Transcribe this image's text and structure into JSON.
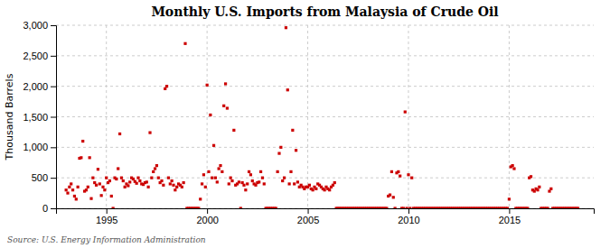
{
  "chart_data": {
    "type": "scatter",
    "title": "Monthly U.S. Imports from Malaysia of Crude Oil",
    "ylabel": "Thousand Barrels",
    "annotations": [
      "Source: U.S. Energy Information Administration"
    ],
    "color": "#CC0000",
    "marker": "square",
    "grid": true,
    "ylim": [
      0,
      3000
    ],
    "yticks": [
      0,
      500,
      {
        "value": 1000,
        "label": "1,000"
      },
      {
        "value": 1500,
        "label": "1,500"
      },
      {
        "value": 2000,
        "label": "2,000"
      },
      {
        "value": 2500,
        "label": "2,500"
      },
      {
        "value": 3000,
        "label": "3,000"
      }
    ],
    "xlim": [
      1992.5,
      2019.2
    ],
    "xticks": [
      1995,
      2000,
      2005,
      2010,
      2015
    ],
    "x": [
      1993.0,
      1993.083,
      1993.167,
      1993.25,
      1993.333,
      1993.417,
      1993.5,
      1993.583,
      1993.667,
      1993.75,
      1993.833,
      1993.917,
      1994.0,
      1994.083,
      1994.167,
      1994.25,
      1994.333,
      1994.417,
      1994.5,
      1994.583,
      1994.667,
      1994.75,
      1994.833,
      1994.917,
      1995.0,
      1995.083,
      1995.167,
      1995.25,
      1995.333,
      1995.417,
      1995.5,
      1995.583,
      1995.667,
      1995.75,
      1995.833,
      1995.917,
      1996.0,
      1996.083,
      1996.167,
      1996.25,
      1996.333,
      1996.417,
      1996.5,
      1996.583,
      1996.667,
      1996.75,
      1996.833,
      1996.917,
      1997.0,
      1997.083,
      1997.167,
      1997.25,
      1997.333,
      1997.417,
      1997.5,
      1997.583,
      1997.667,
      1997.75,
      1997.833,
      1997.917,
      1998.0,
      1998.083,
      1998.167,
      1998.25,
      1998.333,
      1998.417,
      1998.5,
      1998.583,
      1998.667,
      1998.75,
      1998.833,
      1998.917,
      1999.0,
      1999.083,
      1999.167,
      1999.25,
      1999.333,
      1999.417,
      1999.5,
      1999.583,
      1999.667,
      1999.75,
      1999.833,
      1999.917,
      2000.0,
      2000.083,
      2000.167,
      2000.25,
      2000.333,
      2000.417,
      2000.5,
      2000.583,
      2000.667,
      2000.75,
      2000.833,
      2000.917,
      2001.0,
      2001.083,
      2001.167,
      2001.25,
      2001.333,
      2001.417,
      2001.5,
      2001.583,
      2001.667,
      2001.75,
      2001.833,
      2001.917,
      2002.0,
      2002.083,
      2002.167,
      2002.25,
      2002.333,
      2002.417,
      2002.5,
      2002.583,
      2002.667,
      2002.75,
      2002.833,
      2002.917,
      2003.0,
      2003.083,
      2003.167,
      2003.25,
      2003.333,
      2003.417,
      2003.5,
      2003.583,
      2003.667,
      2003.75,
      2003.833,
      2003.917,
      2004.0,
      2004.083,
      2004.167,
      2004.25,
      2004.333,
      2004.417,
      2004.5,
      2004.583,
      2004.667,
      2004.75,
      2004.833,
      2004.917,
      2005.0,
      2005.083,
      2005.167,
      2005.25,
      2005.333,
      2005.417,
      2005.5,
      2005.583,
      2005.667,
      2005.75,
      2005.833,
      2005.917,
      2006.0,
      2006.083,
      2006.167,
      2006.25,
      2006.333,
      2006.417,
      2006.5,
      2006.583,
      2006.667,
      2006.75,
      2006.833,
      2006.917,
      2007.0,
      2007.083,
      2007.167,
      2007.25,
      2007.333,
      2007.417,
      2007.5,
      2007.583,
      2007.667,
      2007.75,
      2007.833,
      2007.917,
      2008.0,
      2008.083,
      2008.167,
      2008.25,
      2008.333,
      2008.417,
      2008.5,
      2008.583,
      2008.667,
      2008.75,
      2008.833,
      2008.917,
      2009.0,
      2009.083,
      2009.167,
      2009.25,
      2009.333,
      2009.417,
      2009.5,
      2009.583,
      2009.667,
      2009.75,
      2009.833,
      2009.917,
      2010.0,
      2010.083,
      2010.167,
      2010.25,
      2010.333,
      2010.417,
      2010.5,
      2010.583,
      2010.667,
      2010.75,
      2010.833,
      2010.917,
      2011.0,
      2011.083,
      2011.167,
      2011.25,
      2011.333,
      2011.417,
      2011.5,
      2011.583,
      2011.667,
      2011.75,
      2011.833,
      2011.917,
      2012.0,
      2012.083,
      2012.167,
      2012.25,
      2012.333,
      2012.417,
      2012.5,
      2012.583,
      2012.667,
      2012.75,
      2012.833,
      2012.917,
      2013.0,
      2013.083,
      2013.167,
      2013.25,
      2013.333,
      2013.417,
      2013.5,
      2013.583,
      2013.667,
      2013.75,
      2013.833,
      2013.917,
      2014.0,
      2014.083,
      2014.167,
      2014.25,
      2014.333,
      2014.417,
      2014.5,
      2014.583,
      2014.667,
      2014.75,
      2014.833,
      2014.917,
      2015.0,
      2015.083,
      2015.167,
      2015.25,
      2015.333,
      2015.417,
      2015.5,
      2015.583,
      2015.667,
      2015.75,
      2015.833,
      2015.917,
      2016.0,
      2016.083,
      2016.167,
      2016.25,
      2016.333,
      2016.417,
      2016.5,
      2016.583,
      2016.667,
      2016.75,
      2016.833,
      2016.917,
      2017.0,
      2017.083,
      2017.167,
      2017.25,
      2017.333,
      2017.417,
      2017.5,
      2017.583,
      2017.667,
      2017.75,
      2017.833,
      2017.917,
      2018.0,
      2018.083,
      2018.167,
      2018.25,
      2018.333,
      2018.417
    ],
    "values": [
      300,
      250,
      350,
      400,
      300,
      200,
      150,
      350,
      820,
      830,
      1100,
      280,
      300,
      350,
      830,
      160,
      500,
      420,
      380,
      640,
      400,
      210,
      350,
      300,
      500,
      420,
      450,
      200,
      0,
      500,
      480,
      650,
      1220,
      500,
      450,
      350,
      400,
      370,
      430,
      500,
      480,
      440,
      410,
      500,
      450,
      400,
      390,
      420,
      430,
      350,
      1240,
      500,
      600,
      650,
      700,
      500,
      420,
      450,
      380,
      1960,
      2000,
      500,
      400,
      450,
      380,
      300,
      350,
      400,
      380,
      350,
      420,
      2700,
      0,
      0,
      0,
      0,
      0,
      0,
      0,
      0,
      150,
      400,
      550,
      350,
      2020,
      600,
      1530,
      500,
      1030,
      500,
      430,
      650,
      700,
      600,
      1680,
      2040,
      1640,
      400,
      500,
      450,
      1280,
      380,
      400,
      430,
      0,
      420,
      380,
      300,
      400,
      600,
      550,
      450,
      400,
      380,
      420,
      430,
      600,
      500,
      400,
      0,
      0,
      0,
      0,
      0,
      0,
      0,
      600,
      900,
      1000,
      450,
      500,
      2960,
      1940,
      400,
      600,
      1280,
      400,
      950,
      430,
      350,
      380,
      350,
      320,
      350,
      350,
      380,
      320,
      300,
      350,
      320,
      400,
      380,
      350,
      320,
      300,
      350,
      320,
      300,
      350,
      380,
      420,
      0,
      0,
      0,
      0,
      0,
      0,
      0,
      0,
      0,
      0,
      0,
      0,
      0,
      0,
      0,
      0,
      0,
      0,
      0,
      0,
      0,
      0,
      0,
      0,
      0,
      0,
      0,
      0,
      0,
      0,
      0,
      200,
      220,
      600,
      180,
      0,
      580,
      600,
      530,
      0,
      0,
      1580,
      0,
      550,
      0,
      500,
      0,
      0,
      0,
      0,
      0,
      0,
      0,
      0,
      0,
      0,
      0,
      0,
      0,
      0,
      0,
      0,
      0,
      0,
      0,
      0,
      0,
      0,
      0,
      0,
      0,
      0,
      0,
      0,
      0,
      0,
      0,
      0,
      0,
      0,
      0,
      0,
      0,
      0,
      0,
      0,
      0,
      0,
      0,
      0,
      0,
      0,
      0,
      0,
      0,
      0,
      0,
      0,
      0,
      0,
      0,
      0,
      0,
      150,
      680,
      700,
      650,
      0,
      0,
      0,
      0,
      0,
      0,
      0,
      0,
      500,
      520,
      300,
      280,
      320,
      300,
      350,
      0,
      0,
      0,
      0,
      0,
      280,
      320,
      0,
      0,
      0,
      0,
      0,
      0,
      0,
      0,
      0,
      0,
      0,
      0,
      0,
      0,
      0,
      0
    ]
  }
}
